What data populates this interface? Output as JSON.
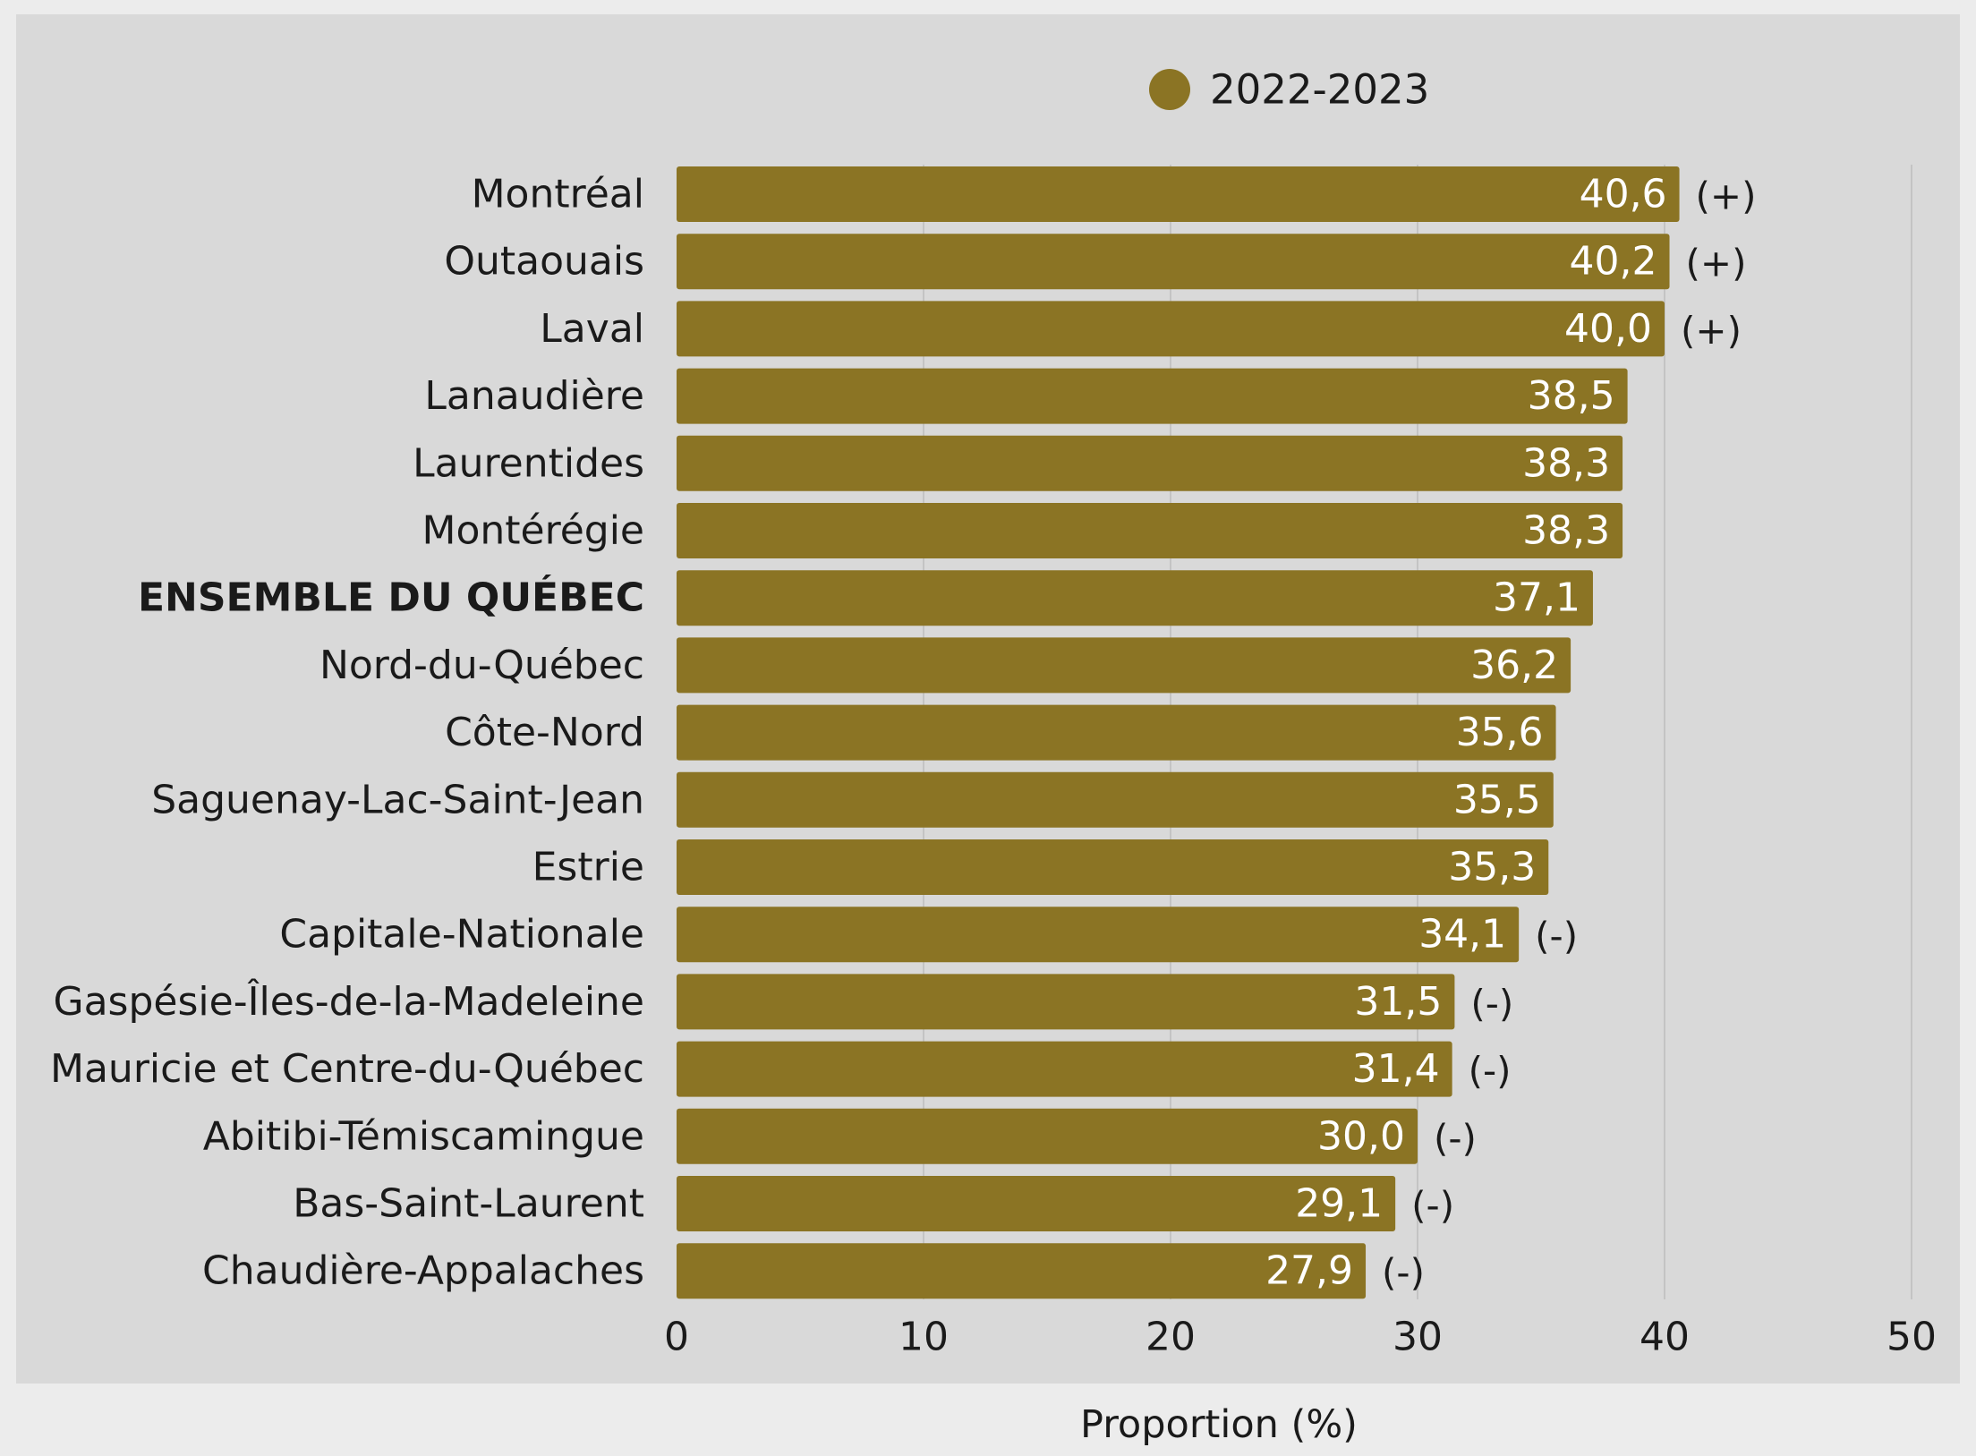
{
  "colors": {
    "page_background": "#ececec",
    "panel_background": "#d9d9d9",
    "bar": "#8b7424",
    "bar_label": "#ffffff",
    "text": "#1a1a1a",
    "grid": "#c4c4c4"
  },
  "chart_data": {
    "type": "bar",
    "orientation": "horizontal",
    "title": "",
    "xlabel": "Proportion (%)",
    "ylabel": "",
    "xlim": [
      0,
      50
    ],
    "x_ticks": [
      "0",
      "10",
      "20",
      "30",
      "40",
      "50"
    ],
    "grid": "vertical",
    "legend": {
      "placement": "top-center",
      "marker": "circle"
    },
    "categories": [
      "Montréal",
      "Outaouais",
      "Laval",
      "Lanaudière",
      "Laurentides",
      "Montérégie",
      "ENSEMBLE DU QUÉBEC",
      "Nord-du-Québec",
      "Côte-Nord",
      "Saguenay-Lac-Saint-Jean",
      "Estrie",
      "Capitale-Nationale",
      "Gaspésie-Îles-de-la-Madeleine",
      "Mauricie et Centre-du-Québec",
      "Abitibi-Témiscamingue",
      "Bas-Saint-Laurent",
      "Chaudière-Appalaches"
    ],
    "bold_categories": [
      "ENSEMBLE DU QUÉBEC"
    ],
    "series": [
      {
        "name": "2022-2023",
        "values": [
          40.6,
          40.2,
          40.0,
          38.5,
          38.3,
          38.3,
          37.1,
          36.2,
          35.6,
          35.5,
          35.3,
          34.1,
          31.5,
          31.4,
          30.0,
          29.1,
          27.9
        ],
        "labels": [
          "40,6",
          "40,2",
          "40,0",
          "38,5",
          "38,3",
          "38,3",
          "37,1",
          "36,2",
          "35,6",
          "35,5",
          "35,3",
          "34,1",
          "31,5",
          "31,4",
          "30,0",
          "29,1",
          "27,9"
        ],
        "annotations": [
          "(+)",
          "(+)",
          "(+)",
          "",
          "",
          "",
          "",
          "",
          "",
          "",
          "",
          "(-)",
          "(-)",
          "(-)",
          "(-)",
          "(-)",
          "(-)"
        ]
      }
    ]
  }
}
